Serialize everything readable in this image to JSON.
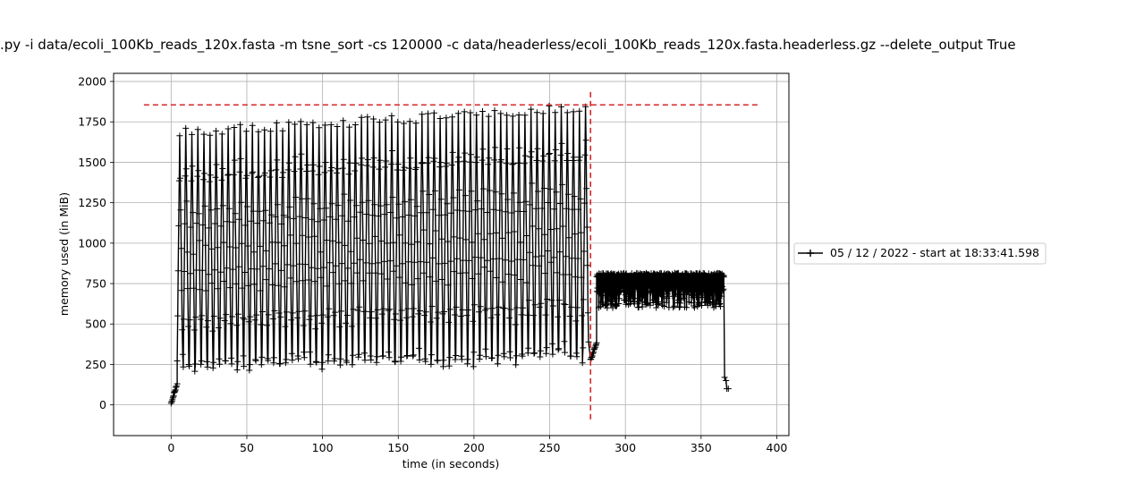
{
  "chart_data": {
    "type": "line",
    "title": ".py -i data/ecoli_100Kb_reads_120x.fasta -m tsne_sort -cs 120000 -c data/headerless/ecoli_100Kb_reads_120x.fasta.headerless.gz --delete_output True",
    "xlabel": "time (in seconds)",
    "ylabel": "memory used (in MiB)",
    "xlim": [
      -38,
      408
    ],
    "ylim": [
      -190,
      2050
    ],
    "xticks": [
      0,
      50,
      100,
      150,
      200,
      250,
      300,
      350,
      400
    ],
    "yticks": [
      0,
      250,
      500,
      750,
      1000,
      1250,
      1500,
      1750,
      2000
    ],
    "grid": true,
    "legend_position": "right, outside plot",
    "series": [
      {
        "name": "05 / 12 / 2022 - start at 18:33:41.598",
        "color": "#000000",
        "marker": "+",
        "phases": [
          {
            "label": "startup",
            "t_start": 0,
            "t_end": 4,
            "y_start": 10,
            "y_end": 130
          },
          {
            "label": "oscillating",
            "t_start": 4,
            "t_end": 277,
            "cycle_seconds": 4.0,
            "low_start": 260,
            "low_end": 330,
            "high_start": 1680,
            "high_end": 1840
          },
          {
            "label": "transition",
            "t_start": 277,
            "t_end": 281,
            "y_start": 280,
            "y_end": 380
          },
          {
            "label": "dense plateau",
            "t_start": 281,
            "t_end": 365,
            "y_low": 600,
            "y_high": 815
          },
          {
            "label": "tail",
            "t_start": 365,
            "t_end": 368,
            "values": [
              170,
              100
            ]
          }
        ]
      }
    ],
    "reference_lines": [
      {
        "orientation": "horizontal",
        "value": 1855,
        "x_from": -18,
        "x_to": 388,
        "color": "#d62728",
        "style": "dashed"
      },
      {
        "orientation": "vertical",
        "value": 277,
        "y_from": -90,
        "y_to": 1950,
        "color": "#d62728",
        "style": "dashed"
      }
    ]
  }
}
